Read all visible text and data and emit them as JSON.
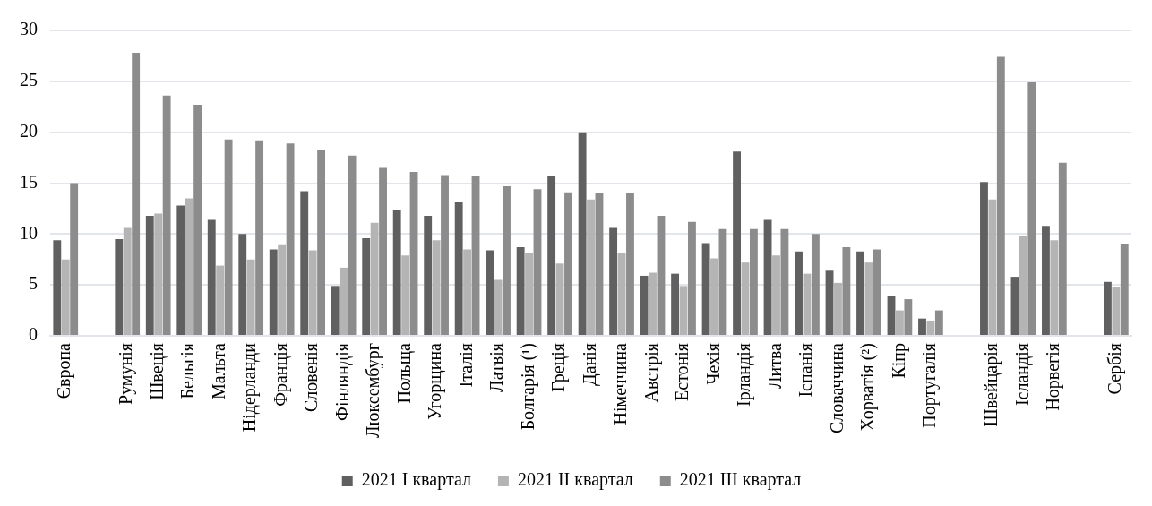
{
  "chart_data": {
    "type": "bar",
    "categories": [
      "Європа",
      null,
      "Румунія",
      "Швеція",
      "Бельгія",
      "Мальта",
      "Нідерланди",
      "Франція",
      "Словенія",
      "Фінляндія",
      "Люксембург",
      "Польща",
      "Угорщина",
      "Італія",
      "Латвія",
      "Болгарія (¹)",
      "Греція",
      "Данія",
      "Німеччина",
      "Австрія",
      "Естонія",
      "Чехія",
      "Ірландія",
      "Литва",
      "Іспанія",
      "Словаччина",
      "Хорватія (²)",
      "Кіпр",
      "Португалія",
      null,
      "Швейцарія",
      "Ісландія",
      "Норвегія",
      null,
      "Сербія"
    ],
    "series": [
      {
        "name": "2021 I квартал",
        "color": "#606060",
        "values": [
          9.4,
          null,
          9.5,
          11.8,
          12.8,
          11.4,
          10.0,
          8.5,
          14.2,
          4.9,
          9.6,
          12.4,
          11.8,
          13.1,
          8.4,
          8.7,
          15.7,
          20.0,
          10.6,
          5.9,
          6.1,
          9.1,
          18.1,
          11.4,
          8.3,
          6.4,
          8.3,
          3.9,
          1.7,
          null,
          15.1,
          5.8,
          10.8,
          null,
          5.3
        ]
      },
      {
        "name": "2021 II квартал",
        "color": "#b4b4b4",
        "values": [
          7.5,
          null,
          10.6,
          12.0,
          13.5,
          6.9,
          7.5,
          8.9,
          8.4,
          6.7,
          11.1,
          7.9,
          9.4,
          8.5,
          5.5,
          8.1,
          7.1,
          13.4,
          8.1,
          6.2,
          4.9,
          7.6,
          7.2,
          7.9,
          6.1,
          5.2,
          7.2,
          2.5,
          1.5,
          null,
          13.4,
          9.8,
          9.4,
          null,
          4.8
        ]
      },
      {
        "name": "2021 III квартал",
        "color": "#8c8c8c",
        "values": [
          15.0,
          null,
          27.8,
          23.6,
          22.7,
          19.3,
          19.2,
          18.9,
          18.3,
          17.7,
          16.5,
          16.1,
          15.8,
          15.7,
          14.7,
          14.4,
          14.1,
          14.0,
          14.0,
          11.8,
          11.2,
          10.5,
          10.5,
          10.5,
          10.0,
          8.7,
          8.5,
          3.6,
          2.5,
          null,
          27.4,
          24.9,
          17.0,
          null,
          9.0
        ]
      }
    ],
    "ylim": [
      0,
      30
    ],
    "yticks": [
      0,
      5,
      10,
      15,
      20,
      25,
      30
    ],
    "grid": "y",
    "legend": "bottom"
  }
}
